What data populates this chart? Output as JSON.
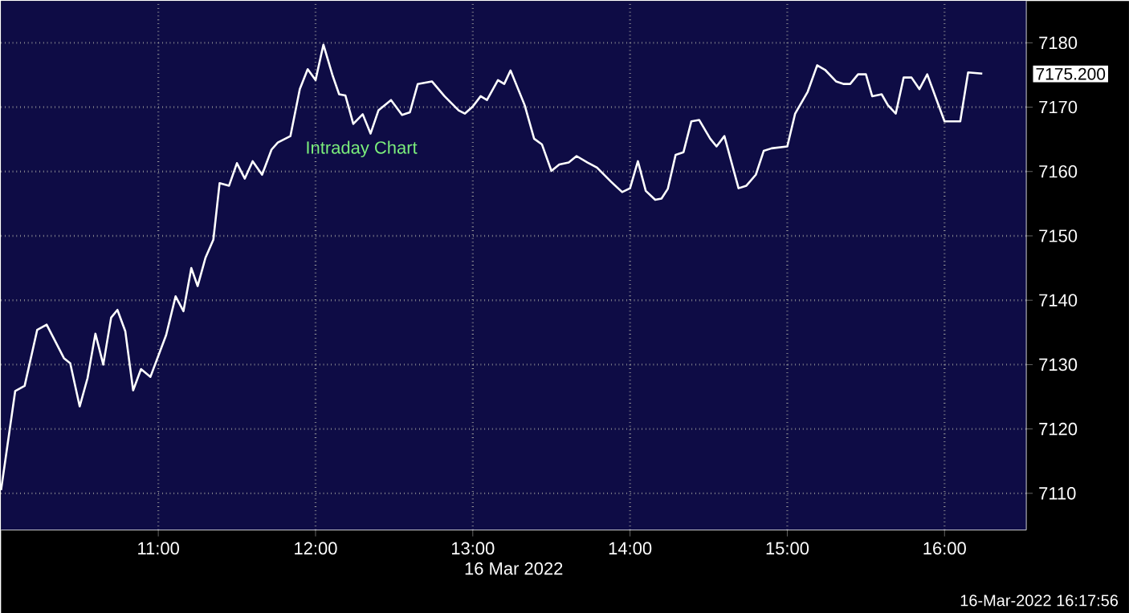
{
  "chart_data": {
    "type": "line",
    "title": "Intraday Chart",
    "xlabel": "16 Mar 2022",
    "x": [
      10.0,
      10.09,
      10.15,
      10.23,
      10.29,
      10.4,
      10.44,
      10.5,
      10.55,
      10.6,
      10.65,
      10.7,
      10.74,
      10.79,
      10.84,
      10.89,
      10.95,
      11.05,
      11.11,
      11.16,
      11.21,
      11.25,
      11.3,
      11.35,
      11.39,
      11.45,
      11.5,
      11.55,
      11.6,
      11.66,
      11.72,
      11.76,
      11.84,
      11.9,
      11.95,
      12.0,
      12.05,
      12.11,
      12.15,
      12.19,
      12.24,
      12.3,
      12.35,
      12.4,
      12.48,
      12.55,
      12.6,
      12.65,
      12.74,
      12.82,
      12.91,
      12.95,
      13.0,
      13.05,
      13.09,
      13.16,
      13.2,
      13.24,
      13.33,
      13.39,
      13.44,
      13.5,
      13.55,
      13.61,
      13.66,
      13.73,
      13.79,
      13.88,
      13.95,
      14.0,
      14.05,
      14.1,
      14.16,
      14.2,
      14.24,
      14.29,
      14.34,
      14.39,
      14.44,
      14.51,
      14.55,
      14.6,
      14.69,
      14.74,
      14.8,
      14.85,
      14.9,
      15.0,
      15.05,
      15.13,
      15.19,
      15.24,
      15.31,
      15.36,
      15.4,
      15.45,
      15.5,
      15.54,
      15.6,
      15.64,
      15.69,
      15.74,
      15.79,
      15.84,
      15.89,
      15.95,
      16.0,
      16.1,
      16.15,
      16.24
    ],
    "series": [
      {
        "color": "#ffffff",
        "values": [
          7110.5,
          7125.9,
          7126.7,
          7135.4,
          7136.2,
          7131.0,
          7130.2,
          7123.5,
          7127.9,
          7134.8,
          7130.0,
          7137.3,
          7138.5,
          7135.2,
          7126.0,
          7129.3,
          7128.1,
          7134.6,
          7140.6,
          7138.3,
          7145.0,
          7142.2,
          7146.6,
          7149.4,
          7158.2,
          7157.8,
          7161.3,
          7158.9,
          7161.6,
          7159.5,
          7163.4,
          7164.5,
          7165.5,
          7172.8,
          7175.9,
          7174.2,
          7179.7,
          7174.8,
          7172.0,
          7171.8,
          7167.4,
          7168.9,
          7165.9,
          7169.5,
          7171.1,
          7168.8,
          7169.2,
          7173.6,
          7174.0,
          7171.7,
          7169.5,
          7169.0,
          7170.1,
          7171.7,
          7171.1,
          7174.2,
          7173.6,
          7175.7,
          7170.3,
          7165.1,
          7164.2,
          7160.1,
          7161.1,
          7161.4,
          7162.4,
          7161.4,
          7160.6,
          7158.4,
          7156.8,
          7157.4,
          7161.6,
          7157.0,
          7155.6,
          7155.8,
          7157.3,
          7162.6,
          7163.0,
          7167.8,
          7168.0,
          7165.1,
          7163.9,
          7165.5,
          7157.4,
          7157.8,
          7159.5,
          7163.2,
          7163.6,
          7163.9,
          7169.0,
          7172.4,
          7176.5,
          7175.8,
          7174.0,
          7173.6,
          7173.6,
          7175.1,
          7175.1,
          7171.7,
          7172.0,
          7170.3,
          7169.0,
          7174.6,
          7174.6,
          7172.8,
          7175.1,
          7171.1,
          7167.8,
          7167.8,
          7175.4,
          7175.2
        ]
      }
    ],
    "xlim": [
      10.0,
      16.52
    ],
    "ylim": [
      7104.3,
      7186.5
    ],
    "xticks": [
      {
        "value": 11,
        "label": "11:00"
      },
      {
        "value": 12,
        "label": "12:00"
      },
      {
        "value": 13,
        "label": "13:00"
      },
      {
        "value": 14,
        "label": "14:00"
      },
      {
        "value": 15,
        "label": "15:00"
      },
      {
        "value": 16,
        "label": "16:00"
      }
    ],
    "yticks": [
      7110,
      7120,
      7130,
      7140,
      7150,
      7160,
      7170,
      7180
    ],
    "grid": true,
    "annotations": [
      "7175.200",
      "16-Mar-2022 16:17:56"
    ]
  }
}
